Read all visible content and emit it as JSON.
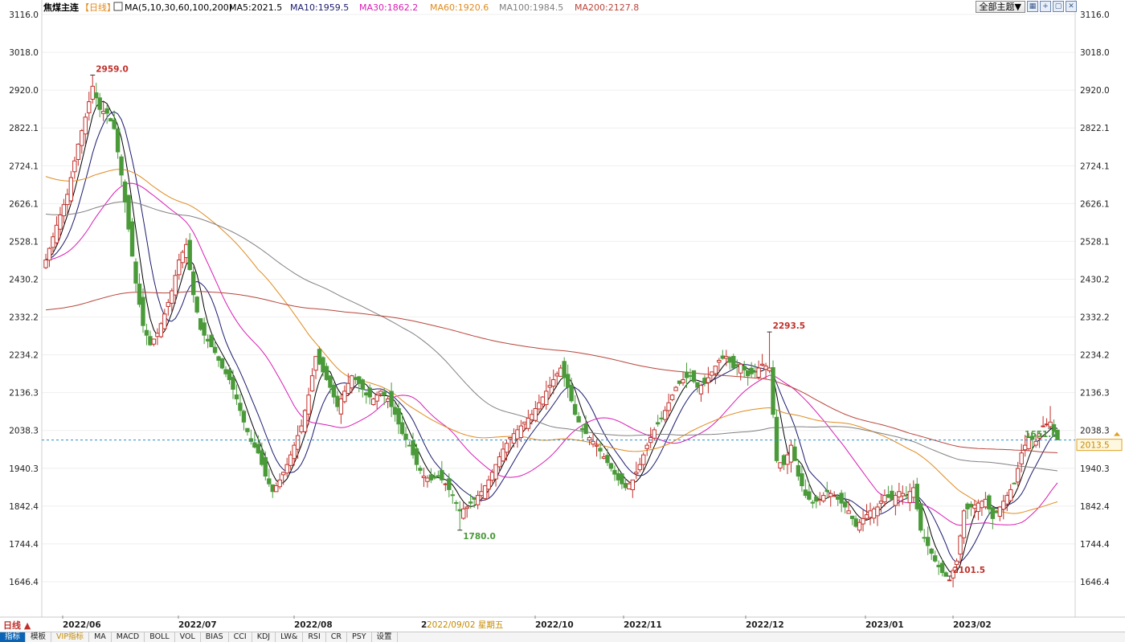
{
  "header": {
    "symbol": "焦煤主连",
    "period": "【日线】",
    "ma_params": "MA(5,10,30,60,100,200)",
    "ma_readouts": [
      {
        "text": "MA5:2021.5",
        "color": "#000000"
      },
      {
        "text": "MA10:1959.5",
        "color": "#1a1a6e"
      },
      {
        "text": "MA30:1862.2",
        "color": "#d81bb5"
      },
      {
        "text": "MA60:1920.6",
        "color": "#e08a1e"
      },
      {
        "text": "MA100:1984.5",
        "color": "#808080"
      },
      {
        "text": "MA200:2127.8",
        "color": "#b8453a"
      }
    ]
  },
  "toolbar": {
    "theme_label": "全部主题▼",
    "icons": [
      "grid-icon",
      "expand-icon",
      "restore-icon",
      "close-icon"
    ]
  },
  "bottom_bar": {
    "period_label": "日线 ▲",
    "tabs": [
      "指标",
      "模板",
      "VIP指标",
      "MA",
      "MACD",
      "BOLL",
      "VOL",
      "BIAS",
      "CCI",
      "KDJ",
      "LW&",
      "RSI",
      "CR",
      "PSY",
      "设置"
    ],
    "active_tab": "指标",
    "vip_tab": "VIP指标",
    "crosshair_date_prefix": "2",
    "crosshair_date": "2022/09/02 星期五"
  },
  "chart_data": {
    "type": "candlestick",
    "y_ticks": [
      3116.0,
      3018.0,
      2920.0,
      2822.1,
      2724.1,
      2626.1,
      2528.1,
      2430.2,
      2332.2,
      2234.2,
      2136.3,
      2038.3,
      1940.3,
      1842.4,
      1744.4,
      1646.4
    ],
    "ylim": [
      1646.4,
      3116.0
    ],
    "x_labels": [
      "2022/06",
      "2022/07",
      "2022/08",
      "2022/10",
      "2022/11",
      "2022/12",
      "2023/01",
      "2023/02"
    ],
    "annotations": [
      {
        "label": "2959.0",
        "type": "high"
      },
      {
        "label": "1780.0",
        "type": "low"
      },
      {
        "label": "2293.5",
        "type": "high"
      },
      {
        "label": "2101.5",
        "type": "high"
      },
      {
        "label": "1651.0",
        "type": "low"
      }
    ],
    "last_price": 2013.5,
    "colors": {
      "up": "#c0302a",
      "down": "#4a9a3a"
    },
    "close_points": [
      [
        0,
        2480
      ],
      [
        3,
        2570
      ],
      [
        6,
        2650
      ],
      [
        9,
        2780
      ],
      [
        11,
        2850
      ],
      [
        13,
        2930
      ],
      [
        15,
        2870
      ],
      [
        17,
        2860
      ],
      [
        19,
        2820
      ],
      [
        21,
        2700
      ],
      [
        23,
        2560
      ],
      [
        25,
        2420
      ],
      [
        27,
        2310
      ],
      [
        29,
        2260
      ],
      [
        31,
        2290
      ],
      [
        33,
        2340
      ],
      [
        35,
        2400
      ],
      [
        37,
        2480
      ],
      [
        39,
        2520
      ],
      [
        41,
        2390
      ],
      [
        43,
        2300
      ],
      [
        45,
        2270
      ],
      [
        47,
        2240
      ],
      [
        49,
        2200
      ],
      [
        51,
        2170
      ],
      [
        53,
        2120
      ],
      [
        55,
        2060
      ],
      [
        57,
        2010
      ],
      [
        59,
        1980
      ],
      [
        61,
        1920
      ],
      [
        63,
        1880
      ],
      [
        65,
        1910
      ],
      [
        67,
        1950
      ],
      [
        69,
        2000
      ],
      [
        71,
        2050
      ],
      [
        73,
        2130
      ],
      [
        75,
        2230
      ],
      [
        77,
        2190
      ],
      [
        79,
        2150
      ],
      [
        81,
        2100
      ],
      [
        83,
        2140
      ],
      [
        85,
        2180
      ],
      [
        87,
        2160
      ],
      [
        89,
        2130
      ],
      [
        91,
        2120
      ],
      [
        93,
        2140
      ],
      [
        95,
        2120
      ],
      [
        97,
        2080
      ],
      [
        99,
        2030
      ],
      [
        101,
        2000
      ],
      [
        103,
        1950
      ],
      [
        105,
        1920
      ],
      [
        107,
        1910
      ],
      [
        109,
        1920
      ],
      [
        111,
        1900
      ],
      [
        113,
        1870
      ],
      [
        115,
        1830
      ],
      [
        117,
        1840
      ],
      [
        119,
        1860
      ],
      [
        121,
        1880
      ],
      [
        123,
        1910
      ],
      [
        125,
        1950
      ],
      [
        127,
        1990
      ],
      [
        129,
        2020
      ],
      [
        131,
        2040
      ],
      [
        133,
        2060
      ],
      [
        135,
        2080
      ],
      [
        137,
        2110
      ],
      [
        139,
        2140
      ],
      [
        141,
        2170
      ],
      [
        143,
        2200
      ],
      [
        145,
        2150
      ],
      [
        147,
        2080
      ],
      [
        149,
        2040
      ],
      [
        151,
        2020
      ],
      [
        153,
        2000
      ],
      [
        155,
        1970
      ],
      [
        157,
        1940
      ],
      [
        159,
        1910
      ],
      [
        161,
        1890
      ],
      [
        163,
        1910
      ],
      [
        165,
        1950
      ],
      [
        167,
        2000
      ],
      [
        169,
        2040
      ],
      [
        171,
        2070
      ],
      [
        173,
        2110
      ],
      [
        175,
        2150
      ],
      [
        177,
        2170
      ],
      [
        179,
        2180
      ],
      [
        181,
        2150
      ],
      [
        183,
        2160
      ],
      [
        185,
        2190
      ],
      [
        187,
        2220
      ],
      [
        189,
        2230
      ],
      [
        191,
        2200
      ],
      [
        193,
        2210
      ],
      [
        195,
        2180
      ],
      [
        197,
        2190
      ],
      [
        199,
        2210
      ],
      [
        201,
        2200
      ],
      [
        203,
        1960
      ],
      [
        205,
        1950
      ],
      [
        207,
        2000
      ],
      [
        209,
        1920
      ],
      [
        211,
        1870
      ],
      [
        213,
        1850
      ],
      [
        215,
        1860
      ],
      [
        217,
        1880
      ],
      [
        219,
        1870
      ],
      [
        221,
        1850
      ],
      [
        223,
        1830
      ],
      [
        225,
        1790
      ],
      [
        227,
        1810
      ],
      [
        229,
        1830
      ],
      [
        231,
        1840
      ],
      [
        233,
        1870
      ],
      [
        235,
        1860
      ],
      [
        237,
        1880
      ],
      [
        239,
        1870
      ],
      [
        241,
        1890
      ],
      [
        243,
        1780
      ],
      [
        245,
        1740
      ],
      [
        247,
        1700
      ],
      [
        249,
        1670
      ],
      [
        251,
        1651
      ],
      [
        253,
        1700
      ],
      [
        255,
        1830
      ],
      [
        257,
        1840
      ],
      [
        259,
        1850
      ],
      [
        261,
        1860
      ],
      [
        263,
        1810
      ],
      [
        265,
        1840
      ],
      [
        267,
        1870
      ],
      [
        269,
        1900
      ],
      [
        271,
        1980
      ],
      [
        273,
        2020
      ],
      [
        275,
        2010
      ],
      [
        277,
        2050
      ],
      [
        279,
        2060
      ],
      [
        281,
        2014
      ]
    ],
    "ma_series": [
      {
        "name": "MA5",
        "color": "#000000"
      },
      {
        "name": "MA10",
        "color": "#1a1a6e"
      },
      {
        "name": "MA30",
        "color": "#d81bb5"
      },
      {
        "name": "MA60",
        "color": "#e08a1e"
      },
      {
        "name": "MA100",
        "color": "#808080"
      },
      {
        "name": "MA200",
        "color": "#b8453a"
      }
    ],
    "ma_windows": [
      5,
      10,
      30,
      60,
      100,
      200
    ]
  }
}
